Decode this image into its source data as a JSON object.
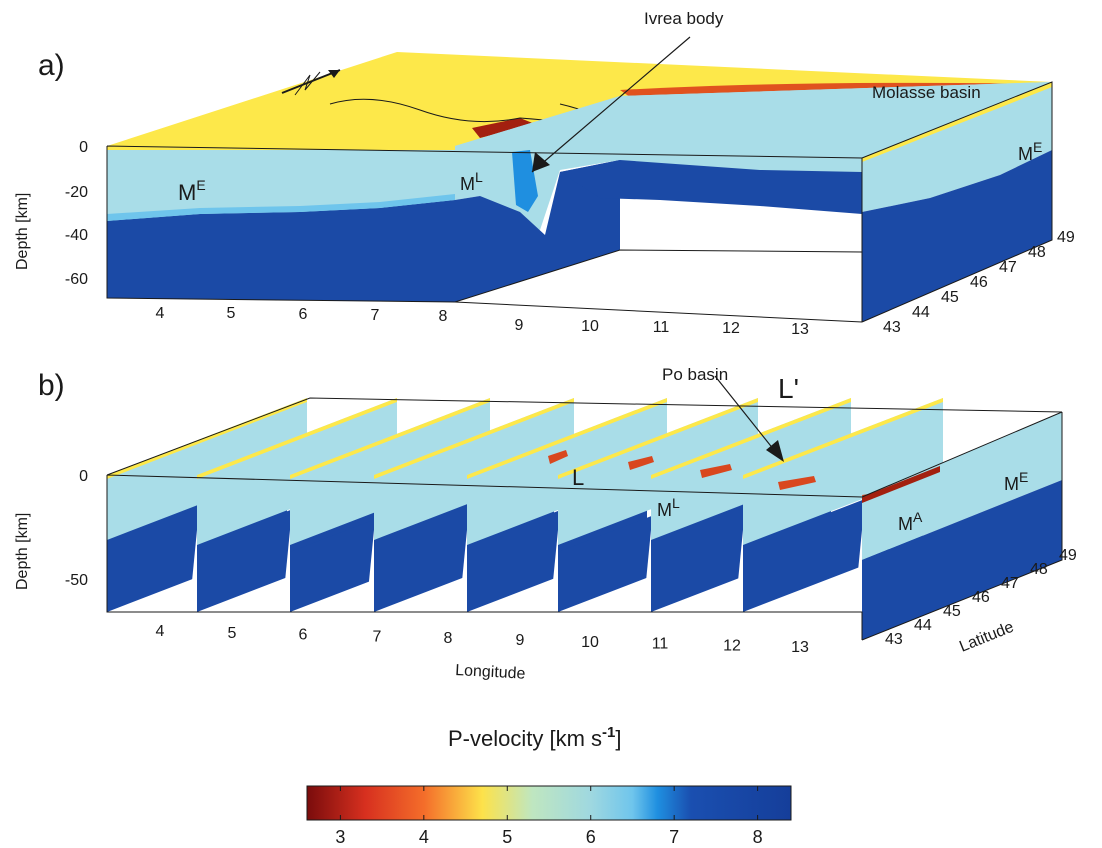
{
  "panels": [
    {
      "label": "a)",
      "annotations": [
        "Ivrea body",
        "Molasse basin"
      ],
      "regions": [
        {
          "base": "M",
          "sup": "E"
        },
        {
          "base": "M",
          "sup": "L"
        },
        {
          "base": "M",
          "sup": "E"
        }
      ],
      "depth_axis": {
        "label": "Depth [km]",
        "ticks": [
          "0",
          "-20",
          "-40",
          "-60"
        ]
      },
      "longitude_ticks": [
        "4",
        "5",
        "6",
        "7",
        "8",
        "9",
        "10",
        "11",
        "12",
        "13"
      ],
      "latitude_ticks": [
        "43",
        "44",
        "45",
        "46",
        "47",
        "48",
        "49"
      ]
    },
    {
      "label": "b)",
      "annotations": [
        "Po basin"
      ],
      "line_labels": [
        "L",
        "L'"
      ],
      "regions": [
        {
          "base": "M",
          "sup": "L"
        },
        {
          "base": "M",
          "sup": "A"
        },
        {
          "base": "M",
          "sup": "E"
        }
      ],
      "depth_axis": {
        "label": "Depth [km]",
        "ticks": [
          "0",
          "-50"
        ]
      },
      "longitude_label": "Longitude",
      "latitude_label": "Latitude",
      "longitude_ticks": [
        "4",
        "5",
        "6",
        "7",
        "8",
        "9",
        "10",
        "11",
        "12",
        "13"
      ],
      "latitude_ticks": [
        "43",
        "44",
        "45",
        "46",
        "47",
        "48",
        "49"
      ]
    }
  ],
  "colorbar": {
    "title_prefix": "P-velocity [km s",
    "title_exp": "-1",
    "title_suffix": "]",
    "min": 2.6,
    "max": 8.4,
    "ticks": [
      "3",
      "4",
      "5",
      "6",
      "7",
      "8"
    ],
    "stops": [
      {
        "v": 2.6,
        "color": "#7a0c0c"
      },
      {
        "v": 3.3,
        "color": "#d7301f"
      },
      {
        "v": 4.0,
        "color": "#f46d2a"
      },
      {
        "v": 4.7,
        "color": "#fde24a"
      },
      {
        "v": 5.3,
        "color": "#bfe6c0"
      },
      {
        "v": 6.0,
        "color": "#9fd8e0"
      },
      {
        "v": 6.5,
        "color": "#6fc5ec"
      },
      {
        "v": 6.8,
        "color": "#1f8fe0"
      },
      {
        "v": 7.2,
        "color": "#1a4fb0"
      },
      {
        "v": 8.4,
        "color": "#153e9a"
      }
    ]
  },
  "colors": {
    "crust": "#a9dde8",
    "mantle": "#1b4aa6",
    "surface": "#fde84a",
    "basin": "#d9471e",
    "deep_red": "#a3200f"
  }
}
